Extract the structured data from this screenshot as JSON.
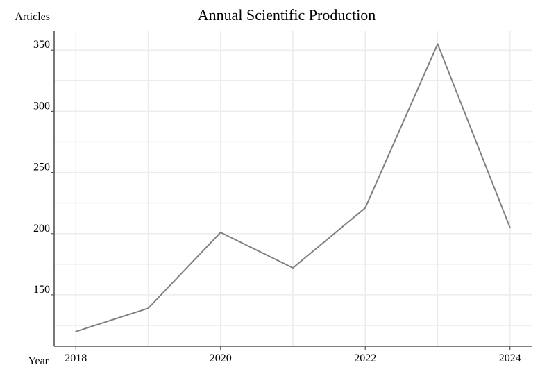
{
  "chart_data": {
    "type": "line",
    "title": "Annual Scientific Production",
    "xlabel": "Year",
    "ylabel": "Articles",
    "x": [
      2018,
      2019,
      2020,
      2021,
      2022,
      2023,
      2024
    ],
    "x_tick_labels": [
      "2018",
      "2020",
      "2022",
      "2024"
    ],
    "x_ticks": [
      2018,
      2020,
      2022,
      2024
    ],
    "y_ticks": [
      150,
      200,
      250,
      300,
      350
    ],
    "y_tick_labels": [
      "150",
      "200",
      "250",
      "300",
      "350"
    ],
    "xlim": [
      2017.7,
      2024.3
    ],
    "ylim": [
      108,
      366
    ],
    "grid": true,
    "series": [
      {
        "values": [
          120,
          139,
          201,
          172,
          221,
          355,
          205
        ],
        "color": "#808080"
      }
    ]
  }
}
